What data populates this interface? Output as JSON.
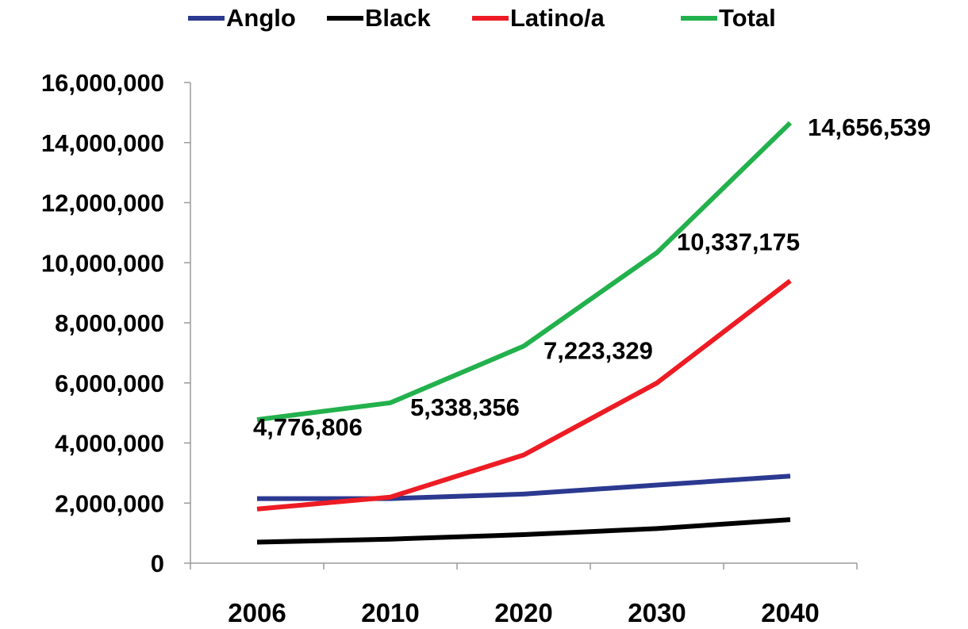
{
  "chart_data": {
    "type": "line",
    "title": "",
    "xlabel": "",
    "ylabel": "",
    "x": [
      "2006",
      "2010",
      "2020",
      "2030",
      "2040"
    ],
    "ylim": [
      0,
      16000000
    ],
    "y_ticks": [
      0,
      2000000,
      4000000,
      6000000,
      8000000,
      10000000,
      12000000,
      14000000,
      16000000
    ],
    "y_tick_labels": [
      "0",
      "2,000,000",
      "4,000,000",
      "6,000,000",
      "8,000,000",
      "10,000,000",
      "12,000,000",
      "14,000,000",
      "16,000,000"
    ],
    "grid": false,
    "legend_position": "top",
    "series": [
      {
        "name": "Anglo",
        "color": "#2b3990",
        "values": [
          2150000,
          2150000,
          2300000,
          2600000,
          2900000
        ]
      },
      {
        "name": "Black",
        "color": "#000000",
        "values": [
          700000,
          800000,
          950000,
          1150000,
          1450000
        ]
      },
      {
        "name": "Latino/a",
        "color": "#ed1c24",
        "values": [
          1800000,
          2200000,
          3600000,
          6000000,
          9400000
        ]
      },
      {
        "name": "Total",
        "color": "#22b14c",
        "values": [
          4776806,
          5338356,
          7223329,
          10337175,
          14656539
        ]
      }
    ],
    "data_labels": [
      {
        "series": "Total",
        "index": 0,
        "text": "4,776,806"
      },
      {
        "series": "Total",
        "index": 1,
        "text": "5,338,356"
      },
      {
        "series": "Total",
        "index": 2,
        "text": "7,223,329"
      },
      {
        "series": "Total",
        "index": 3,
        "text": "10,337,175"
      },
      {
        "series": "Total",
        "index": 4,
        "text": "14,656,539"
      }
    ]
  }
}
